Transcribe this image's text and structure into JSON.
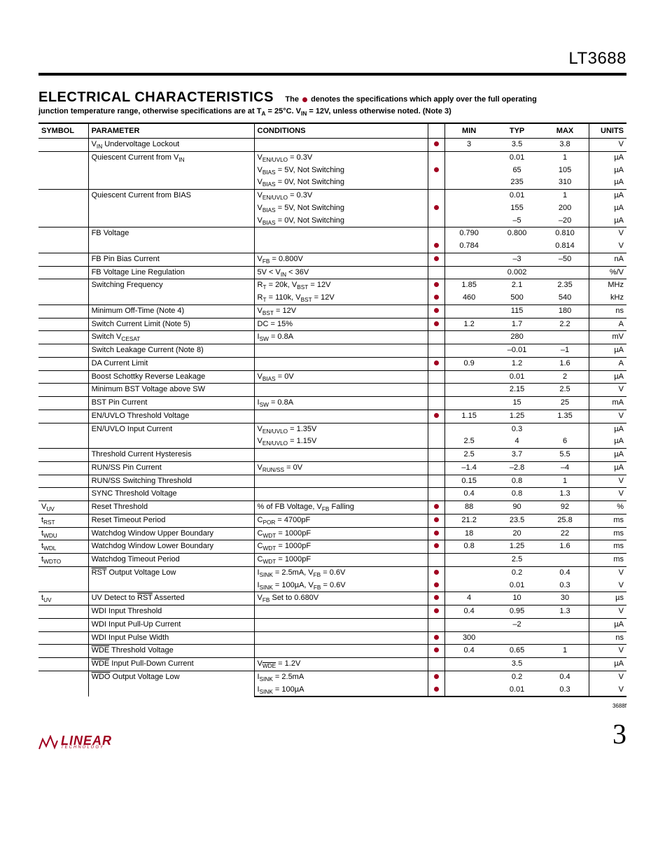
{
  "part_number": "LT3688",
  "section_title": "ELECTRICAL CHARACTERISTICS",
  "subtitle_1a": "The ",
  "subtitle_1b": " denotes the specifications which apply over the full operating",
  "subtitle_2": "junction temperature range, otherwise specifications are at T_A = 25°C. V_IN = 12V, unless otherwise noted. (Note 3)",
  "headers": {
    "symbol": "SYMBOL",
    "parameter": "PARAMETER",
    "conditions": "CONDITIONS",
    "min": "MIN",
    "typ": "TYP",
    "max": "MAX",
    "units": "UNITS"
  },
  "footer_code": "3688f",
  "page_number": "3",
  "logo_text": "LINEAR",
  "logo_sub": "TECHNOLOGY",
  "dot_color": "#a00020",
  "rows": [
    {
      "sep": true,
      "symbol": "",
      "param_html": "V<sub>IN</sub> Undervoltage Lockout",
      "cond": [
        ""
      ],
      "dot": [
        "●"
      ],
      "min": [
        "3"
      ],
      "typ": [
        "3.5"
      ],
      "max": [
        "3.8"
      ],
      "units": [
        "V"
      ]
    },
    {
      "sep": true,
      "symbol": "",
      "param_html": "Quiescent Current from V<sub>IN</sub>",
      "cond": [
        "V<sub>EN/UVLO</sub> = 0.3V",
        "V<sub>BIAS</sub> = 5V, Not Switching",
        "V<sub>BIAS</sub> = 0V, Not Switching"
      ],
      "dot": [
        "",
        "●",
        ""
      ],
      "min": [
        "",
        "",
        ""
      ],
      "typ": [
        "0.01",
        "65",
        "235"
      ],
      "max": [
        "1",
        "105",
        "310"
      ],
      "units": [
        "µA",
        "µA",
        "µA"
      ]
    },
    {
      "sep": true,
      "symbol": "",
      "param_html": "Quiescent Current from BIAS",
      "cond": [
        "V<sub>EN/UVLO</sub> = 0.3V",
        "V<sub>BIAS</sub> = 5V, Not Switching",
        "V<sub>BIAS</sub> = 0V, Not Switching"
      ],
      "dot": [
        "",
        "●",
        ""
      ],
      "min": [
        "",
        "",
        ""
      ],
      "typ": [
        "0.01",
        "155",
        "–5"
      ],
      "max": [
        "1",
        "200",
        "–20"
      ],
      "units": [
        "µA",
        "µA",
        "µA"
      ]
    },
    {
      "sep": true,
      "symbol": "",
      "param_html": "FB Voltage",
      "cond": [
        "",
        ""
      ],
      "dot": [
        "",
        "●"
      ],
      "min": [
        "0.790",
        "0.784"
      ],
      "typ": [
        "0.800",
        ""
      ],
      "max": [
        "0.810",
        "0.814"
      ],
      "units": [
        "V",
        "V"
      ]
    },
    {
      "sep": true,
      "symbol": "",
      "param_html": "FB Pin Bias Current",
      "cond": [
        "V<sub>FB</sub> = 0.800V"
      ],
      "dot": [
        "●"
      ],
      "min": [
        ""
      ],
      "typ": [
        "–3"
      ],
      "max": [
        "–50"
      ],
      "units": [
        "nA"
      ]
    },
    {
      "sep": true,
      "symbol": "",
      "param_html": "FB Voltage Line Regulation",
      "cond": [
        "5V < V<sub>IN</sub> < 36V"
      ],
      "dot": [
        ""
      ],
      "min": [
        ""
      ],
      "typ": [
        "0.002"
      ],
      "max": [
        ""
      ],
      "units": [
        "%/V"
      ]
    },
    {
      "sep": true,
      "symbol": "",
      "param_html": "Switching Frequency",
      "cond": [
        "R<sub>T</sub> = 20k, V<sub>BST</sub> = 12V",
        "R<sub>T</sub> = 110k, V<sub>BST</sub> = 12V"
      ],
      "dot": [
        "●",
        "●"
      ],
      "min": [
        "1.85",
        "460"
      ],
      "typ": [
        "2.1",
        "500"
      ],
      "max": [
        "2.35",
        "540"
      ],
      "units": [
        "MHz",
        "kHz"
      ]
    },
    {
      "sep": true,
      "symbol": "",
      "param_html": "Minimum Off-Time (Note 4)",
      "cond": [
        "V<sub>BST</sub> = 12V"
      ],
      "dot": [
        "●"
      ],
      "min": [
        ""
      ],
      "typ": [
        "115"
      ],
      "max": [
        "180"
      ],
      "units": [
        "ns"
      ]
    },
    {
      "sep": true,
      "symbol": "",
      "param_html": "Switch Current Limit (Note 5)",
      "cond": [
        "DC = 15%"
      ],
      "dot": [
        "●"
      ],
      "min": [
        "1.2"
      ],
      "typ": [
        "1.7"
      ],
      "max": [
        "2.2"
      ],
      "units": [
        "A"
      ]
    },
    {
      "sep": true,
      "symbol": "",
      "param_html": "Switch V<sub>CESAT</sub>",
      "cond": [
        "I<sub>SW</sub> = 0.8A"
      ],
      "dot": [
        ""
      ],
      "min": [
        ""
      ],
      "typ": [
        "280"
      ],
      "max": [
        ""
      ],
      "units": [
        "mV"
      ]
    },
    {
      "sep": true,
      "symbol": "",
      "param_html": "Switch Leakage Current (Note 8)",
      "cond": [
        ""
      ],
      "dot": [
        ""
      ],
      "min": [
        ""
      ],
      "typ": [
        "–0.01"
      ],
      "max": [
        "–1"
      ],
      "units": [
        "µA"
      ]
    },
    {
      "sep": true,
      "symbol": "",
      "param_html": "DA Current Limit",
      "cond": [
        ""
      ],
      "dot": [
        "●"
      ],
      "min": [
        "0.9"
      ],
      "typ": [
        "1.2"
      ],
      "max": [
        "1.6"
      ],
      "units": [
        "A"
      ]
    },
    {
      "sep": true,
      "symbol": "",
      "param_html": "Boost Schottky Reverse Leakage",
      "cond": [
        "V<sub>BIAS</sub> = 0V"
      ],
      "dot": [
        ""
      ],
      "min": [
        ""
      ],
      "typ": [
        "0.01"
      ],
      "max": [
        "2"
      ],
      "units": [
        "µA"
      ]
    },
    {
      "sep": true,
      "symbol": "",
      "param_html": "Minimum BST Voltage above SW",
      "cond": [
        ""
      ],
      "dot": [
        ""
      ],
      "min": [
        ""
      ],
      "typ": [
        "2.15"
      ],
      "max": [
        "2.5"
      ],
      "units": [
        "V"
      ]
    },
    {
      "sep": true,
      "symbol": "",
      "param_html": "BST Pin Current",
      "cond": [
        "I<sub>SW</sub> = 0.8A"
      ],
      "dot": [
        ""
      ],
      "min": [
        ""
      ],
      "typ": [
        "15"
      ],
      "max": [
        "25"
      ],
      "units": [
        "mA"
      ]
    },
    {
      "sep": true,
      "symbol": "",
      "param_html": "EN/UVLO Threshold Voltage",
      "cond": [
        ""
      ],
      "dot": [
        "●"
      ],
      "min": [
        "1.15"
      ],
      "typ": [
        "1.25"
      ],
      "max": [
        "1.35"
      ],
      "units": [
        "V"
      ]
    },
    {
      "sep": true,
      "symbol": "",
      "param_html": "EN/UVLO Input Current",
      "cond": [
        "V<sub>EN/UVLO</sub> = 1.35V",
        "V<sub>EN/UVLO</sub> = 1.15V"
      ],
      "dot": [
        "",
        ""
      ],
      "min": [
        "",
        "2.5"
      ],
      "typ": [
        "0.3",
        "4"
      ],
      "max": [
        "",
        "6"
      ],
      "units": [
        "µA",
        "µA"
      ]
    },
    {
      "sep": true,
      "symbol": "",
      "param_html": "Threshold Current Hysteresis",
      "cond": [
        ""
      ],
      "dot": [
        ""
      ],
      "min": [
        "2.5"
      ],
      "typ": [
        "3.7"
      ],
      "max": [
        "5.5"
      ],
      "units": [
        "µA"
      ]
    },
    {
      "sep": true,
      "symbol": "",
      "param_html": "RUN/SS Pin Current",
      "cond": [
        "V<sub>RUN/SS</sub> = 0V"
      ],
      "dot": [
        ""
      ],
      "min": [
        "–1.4"
      ],
      "typ": [
        "–2.8"
      ],
      "max": [
        "–4"
      ],
      "units": [
        "µA"
      ]
    },
    {
      "sep": true,
      "symbol": "",
      "param_html": "RUN/SS Switching Threshold",
      "cond": [
        ""
      ],
      "dot": [
        ""
      ],
      "min": [
        "0.15"
      ],
      "typ": [
        "0.8"
      ],
      "max": [
        "1"
      ],
      "units": [
        "V"
      ]
    },
    {
      "sep": true,
      "symbol": "",
      "param_html": "SYNC Threshold Voltage",
      "cond": [
        ""
      ],
      "dot": [
        ""
      ],
      "min": [
        "0.4"
      ],
      "typ": [
        "0.8"
      ],
      "max": [
        "1.3"
      ],
      "units": [
        "V"
      ]
    },
    {
      "sep": true,
      "symbol": "V<sub>UV</sub>",
      "param_html": "Reset Threshold",
      "cond": [
        "% of FB Voltage, V<sub>FB</sub> Falling"
      ],
      "dot": [
        "●"
      ],
      "min": [
        "88"
      ],
      "typ": [
        "90"
      ],
      "max": [
        "92"
      ],
      "units": [
        "%"
      ]
    },
    {
      "sep": true,
      "symbol": "t<sub>RST</sub>",
      "param_html": "Reset Timeout Period",
      "cond": [
        "C<sub>POR</sub> = 4700pF"
      ],
      "dot": [
        "●"
      ],
      "min": [
        "21.2"
      ],
      "typ": [
        "23.5"
      ],
      "max": [
        "25.8"
      ],
      "units": [
        "ms"
      ]
    },
    {
      "sep": true,
      "symbol": "t<sub>WDU</sub>",
      "param_html": "Watchdog Window Upper Boundary",
      "cond": [
        "C<sub>WDT</sub> = 1000pF"
      ],
      "dot": [
        "●"
      ],
      "min": [
        "18"
      ],
      "typ": [
        "20"
      ],
      "max": [
        "22"
      ],
      "units": [
        "ms"
      ]
    },
    {
      "sep": true,
      "symbol": "t<sub>WDL</sub>",
      "param_html": "Watchdog  Window Lower Boundary",
      "cond": [
        "C<sub>WDT</sub> = 1000pF"
      ],
      "dot": [
        "●"
      ],
      "min": [
        "0.8"
      ],
      "typ": [
        "1.25"
      ],
      "max": [
        "1.6"
      ],
      "units": [
        "ms"
      ]
    },
    {
      "sep": true,
      "symbol": "t<sub>WDTO</sub>",
      "param_html": "Watchdog Timeout Period",
      "cond": [
        "C<sub>WDT</sub> = 1000pF"
      ],
      "dot": [
        ""
      ],
      "min": [
        ""
      ],
      "typ": [
        "2.5"
      ],
      "max": [
        ""
      ],
      "units": [
        "ms"
      ]
    },
    {
      "sep": true,
      "symbol": "",
      "param_html": "<span class=\"ovl\">RST</span> Output Voltage Low",
      "cond": [
        "I<sub>SINK</sub> = 2.5mA, V<sub>FB</sub> = 0.6V",
        "I<sub>SINK</sub> = 100µA, V<sub>FB</sub> = 0.6V"
      ],
      "dot": [
        "●",
        "●"
      ],
      "min": [
        "",
        ""
      ],
      "typ": [
        "0.2",
        "0.01"
      ],
      "max": [
        "0.4",
        "0.3"
      ],
      "units": [
        "V",
        "V"
      ]
    },
    {
      "sep": true,
      "symbol": "t<sub>UV</sub>",
      "param_html": "UV Detect to <span class=\"ovl\">RST</span> Asserted",
      "cond": [
        "V<sub>FB</sub> Set to 0.680V"
      ],
      "dot": [
        "●"
      ],
      "min": [
        "4"
      ],
      "typ": [
        "10"
      ],
      "max": [
        "30"
      ],
      "units": [
        "µs"
      ]
    },
    {
      "sep": true,
      "symbol": "",
      "param_html": "WDI Input Threshold",
      "cond": [
        ""
      ],
      "dot": [
        "●"
      ],
      "min": [
        "0.4"
      ],
      "typ": [
        "0.95"
      ],
      "max": [
        "1.3"
      ],
      "units": [
        "V"
      ]
    },
    {
      "sep": true,
      "symbol": "",
      "param_html": "WDI Input Pull-Up Current",
      "cond": [
        ""
      ],
      "dot": [
        ""
      ],
      "min": [
        ""
      ],
      "typ": [
        "–2"
      ],
      "max": [
        ""
      ],
      "units": [
        "µA"
      ]
    },
    {
      "sep": true,
      "symbol": "",
      "param_html": "WDI Input Pulse Width",
      "cond": [
        ""
      ],
      "dot": [
        "●"
      ],
      "min": [
        "300"
      ],
      "typ": [
        ""
      ],
      "max": [
        ""
      ],
      "units": [
        "ns"
      ]
    },
    {
      "sep": true,
      "symbol": "",
      "param_html": "<span class=\"ovl\">WDE</span> Threshold Voltage",
      "cond": [
        ""
      ],
      "dot": [
        "●"
      ],
      "min": [
        "0.4"
      ],
      "typ": [
        "0.65"
      ],
      "max": [
        "1"
      ],
      "units": [
        "V"
      ]
    },
    {
      "sep": true,
      "symbol": "",
      "param_html": "<span class=\"ovl\">WDE</span> Input Pull-Down Current",
      "cond": [
        "V<sub><span class=\"ovl\">WDE</span></sub> = 1.2V"
      ],
      "dot": [
        ""
      ],
      "min": [
        ""
      ],
      "typ": [
        "3.5"
      ],
      "max": [
        ""
      ],
      "units": [
        "µA"
      ]
    },
    {
      "sep": true,
      "last": true,
      "symbol": "",
      "param_html": "<span class=\"ovl\">WDO</span> Output Voltage Low",
      "cond": [
        "I<sub>SINK</sub> = 2.5mA",
        "I<sub>SINK</sub> = 100µA"
      ],
      "dot": [
        "●",
        "●"
      ],
      "min": [
        "",
        ""
      ],
      "typ": [
        "0.2",
        "0.01"
      ],
      "max": [
        "0.4",
        "0.3"
      ],
      "units": [
        "V",
        "V"
      ]
    }
  ]
}
